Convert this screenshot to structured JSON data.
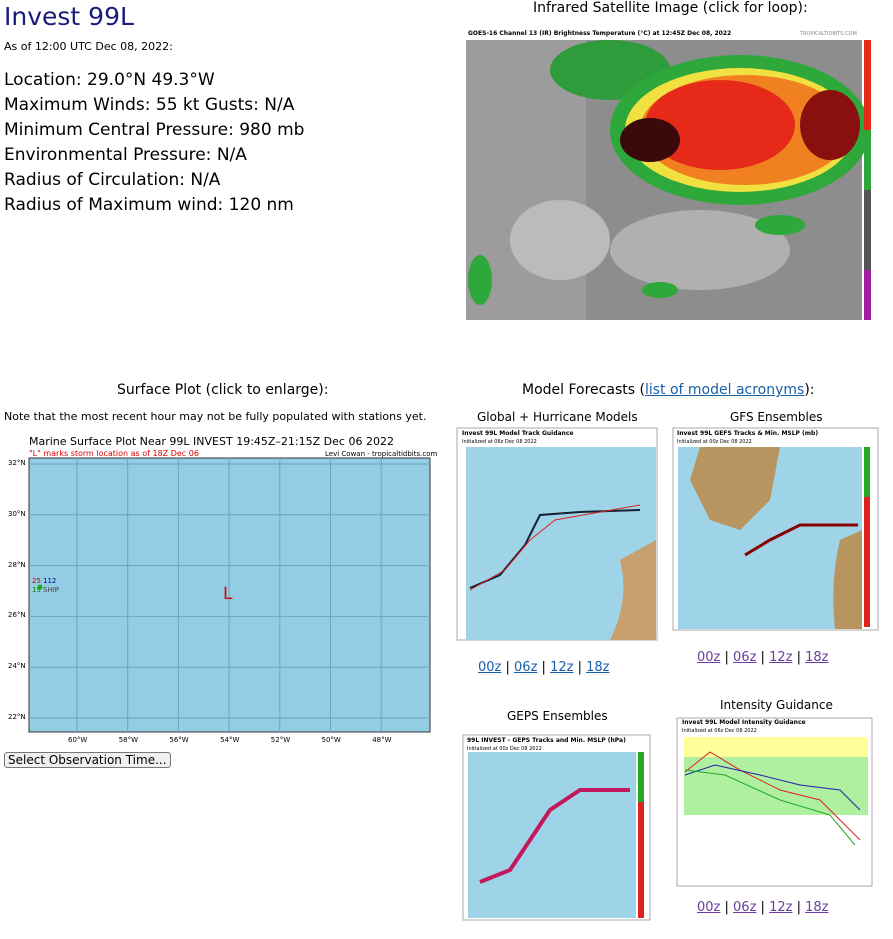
{
  "header": {
    "title": "Invest 99L",
    "as_of": "As of 12:00 UTC Dec 08, 2022:"
  },
  "info": [
    "Location: 29.0°N 49.3°W",
    "Maximum Winds: 55 kt  Gusts: N/A",
    "Minimum Central Pressure: 980 mb",
    "Environmental Pressure: N/A",
    "Radius of Circulation: N/A",
    "Radius of Maximum wind: 120 nm"
  ],
  "satellite": {
    "heading": "Infrared Satellite Image (click for loop):",
    "image_title": "GOES-16 Channel 13 (IR) Brightness Temperature (°C) at 12:45Z Dec 08, 2022",
    "credit": "TROPICALTIDBITS.COM"
  },
  "surface": {
    "heading": "Surface Plot (click to enlarge):",
    "note": "Note that the most recent hour may not be fully populated with stations yet.",
    "plot_title": "Marine Surface Plot Near 99L INVEST 19:45Z–21:15Z Dec 06 2022",
    "plot_subtitle": "\"L\" marks storm location as of 18Z Dec 06",
    "credit": "Levi Cowan - tropicaltidbits.com",
    "lat_labels": [
      "32°N",
      "30°N",
      "28°N",
      "26°N",
      "24°N",
      "22°N"
    ],
    "lon_labels": [
      "60°W",
      "58°W",
      "56°W",
      "54°W",
      "52°W",
      "50°W",
      "48°W"
    ],
    "storm_marker": "L",
    "station": {
      "temp": "25",
      "pressure": "112",
      "dewpoint": "19",
      "id": "SHIP"
    },
    "select": "Select Observation Time..."
  },
  "models": {
    "heading_start": "Model Forecasts (",
    "heading_link": "list of model acronyms",
    "heading_end": "):",
    "separator": "|",
    "panels": [
      {
        "title": "Global + Hurricane Models",
        "image_title": "Invest 99L Model Track Guidance",
        "init": "Initialized at 06z Dec 08 2022",
        "links": [
          "00z",
          "06z",
          "12z",
          "18z"
        ]
      },
      {
        "title": "GFS Ensembles",
        "image_title": "Invest 99L GEFS Tracks & Min. MSLP (mb)",
        "init": "Initialized at 00z Dec 08 2022",
        "links": [
          "00z",
          "06z",
          "12z",
          "18z"
        ]
      },
      {
        "title": "GEPS Ensembles",
        "image_title": "99L INVEST - GEPS Tracks and Min. MSLP (hPa)",
        "init": "Initialized at 00z Dec 08 2022",
        "links": []
      },
      {
        "title": "Intensity Guidance",
        "image_title": "Invest 99L Model Intensity Guidance",
        "init": "Initialized at 06z Dec 08 2022",
        "links": [
          "00z",
          "06z",
          "12z",
          "18z"
        ]
      }
    ]
  }
}
